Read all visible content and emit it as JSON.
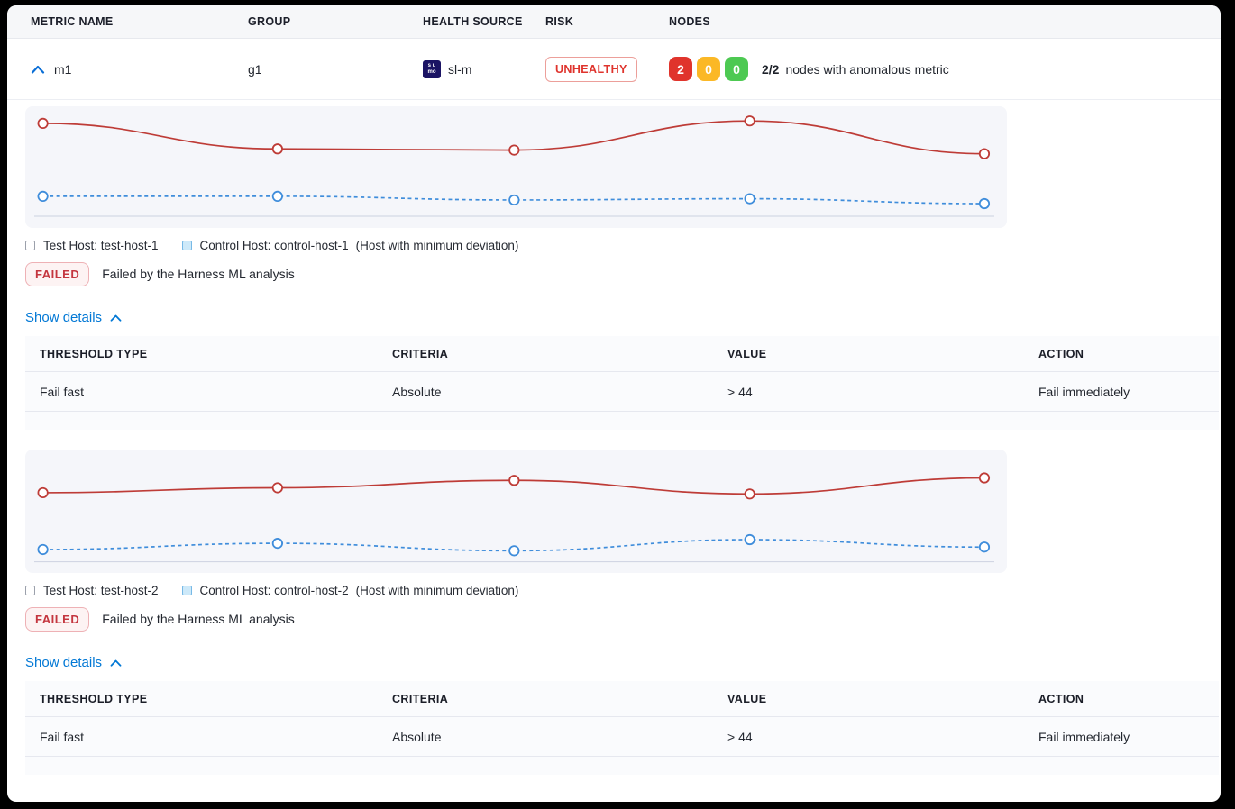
{
  "header": {
    "columns": [
      "METRIC NAME",
      "GROUP",
      "HEALTH SOURCE",
      "RISK",
      "NODES"
    ]
  },
  "metric_row": {
    "name": "m1",
    "group": "g1",
    "health_source": "sl-m",
    "health_source_icon_text": "s u\nmo",
    "risk_label": "UNHEALTHY",
    "nodes": {
      "anomalous_count": "2",
      "warning_count": "0",
      "healthy_count": "0",
      "ratio": "2/2",
      "summary": "nodes with anomalous metric"
    }
  },
  "colors": {
    "test_line": "#be3c37",
    "control_line": "#3f8ddb",
    "baseline": "#ccd1e0",
    "link_blue": "#0278d5",
    "node_red": "#e0342c",
    "node_yellow": "#fbb826",
    "node_green": "#4dc952"
  },
  "sections": [
    {
      "legend": {
        "test_label": "Test Host: test-host-1",
        "control_label": "Control Host: control-host-1",
        "control_note": "(Host with minimum deviation)"
      },
      "status": {
        "badge": "FAILED",
        "message": "Failed by the Harness ML analysis"
      },
      "details_link": "Show details",
      "table": {
        "headers": [
          "THRESHOLD TYPE",
          "CRITERIA",
          "VALUE",
          "ACTION"
        ],
        "rows": [
          [
            "Fail fast",
            "Absolute",
            "> 44",
            "Fail immediately"
          ]
        ]
      }
    },
    {
      "legend": {
        "test_label": "Test Host: test-host-2",
        "control_label": "Control Host: control-host-2",
        "control_note": "(Host with minimum deviation)"
      },
      "status": {
        "badge": "FAILED",
        "message": "Failed by the Harness ML analysis"
      },
      "details_link": "Show details",
      "table": {
        "headers": [
          "THRESHOLD TYPE",
          "CRITERIA",
          "VALUE",
          "ACTION"
        ],
        "rows": [
          [
            "Fail fast",
            "Absolute",
            "> 44",
            "Fail immediately"
          ]
        ]
      }
    }
  ],
  "chart_data": [
    {
      "type": "line",
      "title": "",
      "axes": "none (no tick labels or gridlines shown; values estimated as % of plot height from top)",
      "x_pct": [
        1.8,
        25.7,
        49.8,
        73.8,
        97.7
      ],
      "baseline_y_pct": 90.4,
      "series": [
        {
          "name": "Test Host: test-host-1",
          "color": "#be3c37",
          "style": "solid",
          "marker": "open-circle",
          "y_pct_from_top": [
            14,
            35,
            36,
            12,
            39
          ]
        },
        {
          "name": "Control Host: control-host-1",
          "color": "#3f8ddb",
          "style": "dashed",
          "marker": "open-circle",
          "y_pct_from_top": [
            74,
            74,
            77,
            76,
            80
          ]
        }
      ],
      "legend_position": "below"
    },
    {
      "type": "line",
      "title": "",
      "axes": "none (no tick labels or gridlines shown; values estimated as % of plot height from top)",
      "x_pct": [
        1.8,
        25.7,
        49.8,
        73.8,
        97.7
      ],
      "baseline_y_pct": 91.0,
      "series": [
        {
          "name": "Test Host: test-host-2",
          "color": "#be3c37",
          "style": "solid",
          "marker": "open-circle",
          "y_pct_from_top": [
            35,
            31,
            25,
            36,
            23
          ]
        },
        {
          "name": "Control Host: control-host-2",
          "color": "#3f8ddb",
          "style": "dashed",
          "marker": "open-circle",
          "y_pct_from_top": [
            81,
            76,
            82,
            73,
            79
          ]
        }
      ],
      "legend_position": "below"
    }
  ]
}
